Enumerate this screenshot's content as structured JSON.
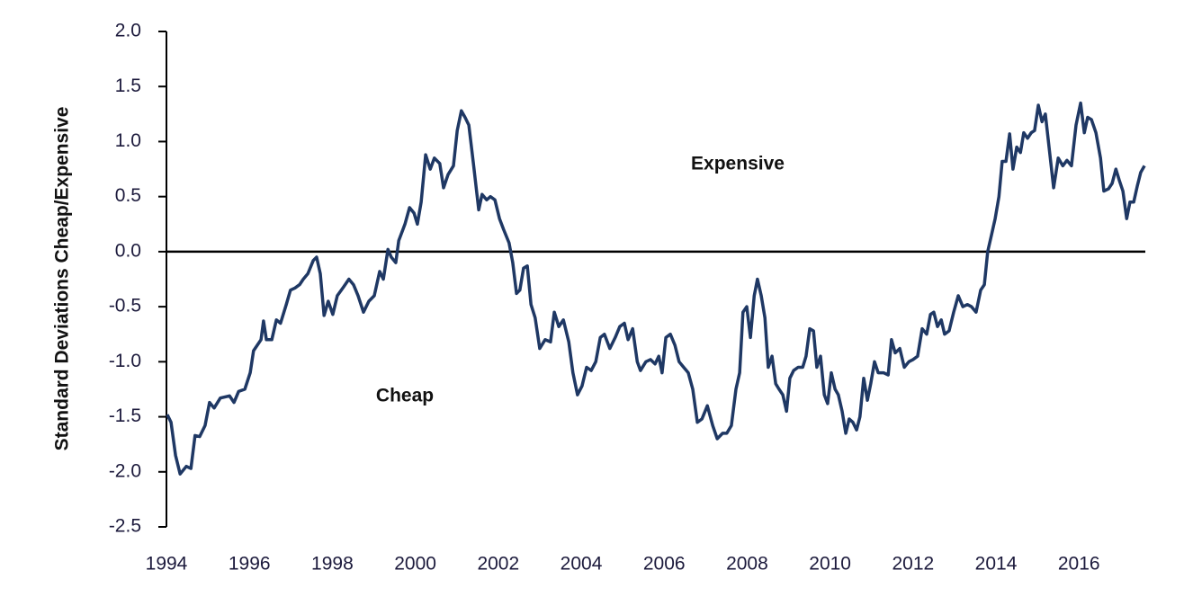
{
  "chart_data": {
    "type": "line",
    "y_label": "Standard Deviations Cheap/Expensive",
    "annotations": [
      "Expensive",
      "Cheap"
    ],
    "color": "#1f3864",
    "x": [
      1994.02,
      1994.11,
      1994.22,
      1994.33,
      1994.48,
      1994.59,
      1994.69,
      1994.8,
      1994.93,
      1995.04,
      1995.15,
      1995.3,
      1995.52,
      1995.63,
      1995.74,
      1995.89,
      1996.02,
      1996.1,
      1996.28,
      1996.34,
      1996.41,
      1996.54,
      1996.65,
      1996.75,
      1996.89,
      1996.99,
      1997.1,
      1997.21,
      1997.3,
      1997.41,
      1997.54,
      1997.62,
      1997.71,
      1997.8,
      1997.9,
      1998.01,
      1998.12,
      1998.27,
      1998.4,
      1998.51,
      1998.62,
      1998.75,
      1998.88,
      1999.01,
      1999.14,
      1999.23,
      1999.34,
      1999.42,
      1999.53,
      1999.6,
      1999.75,
      1999.86,
      1999.97,
      2000.05,
      2000.14,
      2000.25,
      2000.36,
      2000.46,
      2000.59,
      2000.68,
      2000.79,
      2000.92,
      2001.01,
      2001.11,
      2001.2,
      2001.29,
      2001.4,
      2001.53,
      2001.61,
      2001.72,
      2001.81,
      2001.92,
      2002.03,
      2002.13,
      2002.26,
      2002.35,
      2002.44,
      2002.52,
      2002.61,
      2002.7,
      2002.79,
      2002.89,
      2003.0,
      2003.13,
      2003.26,
      2003.35,
      2003.46,
      2003.57,
      2003.7,
      2003.8,
      2003.91,
      2004.02,
      2004.13,
      2004.24,
      2004.35,
      2004.46,
      2004.56,
      2004.69,
      2004.82,
      2004.93,
      2005.04,
      2005.13,
      2005.24,
      2005.35,
      2005.43,
      2005.56,
      2005.67,
      2005.78,
      2005.87,
      2005.95,
      2006.04,
      2006.15,
      2006.26,
      2006.36,
      2006.47,
      2006.58,
      2006.69,
      2006.8,
      2006.91,
      2007.04,
      2007.17,
      2007.28,
      2007.41,
      2007.51,
      2007.62,
      2007.73,
      2007.82,
      2007.9,
      2007.99,
      2008.08,
      2008.17,
      2008.25,
      2008.34,
      2008.43,
      2008.51,
      2008.6,
      2008.69,
      2008.77,
      2008.86,
      2008.95,
      2009.03,
      2009.12,
      2009.23,
      2009.34,
      2009.42,
      2009.51,
      2009.6,
      2009.68,
      2009.77,
      2009.86,
      2009.94,
      2010.03,
      2010.12,
      2010.2,
      2010.29,
      2010.38,
      2010.46,
      2010.55,
      2010.64,
      2010.72,
      2010.81,
      2010.9,
      2010.98,
      2011.07,
      2011.16,
      2011.29,
      2011.4,
      2011.48,
      2011.57,
      2011.68,
      2011.79,
      2011.9,
      2012.0,
      2012.11,
      2012.22,
      2012.33,
      2012.42,
      2012.5,
      2012.59,
      2012.68,
      2012.76,
      2012.87,
      2012.98,
      2013.09,
      2013.2,
      2013.31,
      2013.41,
      2013.52,
      2013.63,
      2013.72,
      2013.8,
      2013.89,
      2013.98,
      2014.07,
      2014.15,
      2014.24,
      2014.33,
      2014.41,
      2014.5,
      2014.59,
      2014.67,
      2014.76,
      2014.85,
      2014.93,
      2015.02,
      2015.11,
      2015.19,
      2015.28,
      2015.39,
      2015.5,
      2015.61,
      2015.71,
      2015.82,
      2015.93,
      2016.04,
      2016.13,
      2016.21,
      2016.3,
      2016.41,
      2016.52,
      2016.6,
      2016.71,
      2016.8,
      2016.89,
      2016.97,
      2017.06,
      2017.15,
      2017.23,
      2017.32,
      2017.41,
      2017.49,
      2017.58
    ],
    "values": [
      -1.48,
      -1.55,
      -1.85,
      -2.02,
      -1.95,
      -1.97,
      -1.67,
      -1.68,
      -1.58,
      -1.37,
      -1.42,
      -1.33,
      -1.31,
      -1.37,
      -1.27,
      -1.25,
      -1.1,
      -0.9,
      -0.8,
      -0.63,
      -0.8,
      -0.8,
      -0.62,
      -0.65,
      -0.48,
      -0.35,
      -0.33,
      -0.3,
      -0.25,
      -0.2,
      -0.08,
      -0.05,
      -0.2,
      -0.58,
      -0.45,
      -0.57,
      -0.4,
      -0.32,
      -0.25,
      -0.3,
      -0.4,
      -0.55,
      -0.45,
      -0.4,
      -0.18,
      -0.25,
      0.02,
      -0.05,
      -0.1,
      0.1,
      0.25,
      0.4,
      0.35,
      0.25,
      0.45,
      0.88,
      0.75,
      0.85,
      0.8,
      0.58,
      0.7,
      0.78,
      1.1,
      1.28,
      1.22,
      1.15,
      0.8,
      0.38,
      0.52,
      0.47,
      0.5,
      0.47,
      0.3,
      0.2,
      0.08,
      -0.1,
      -0.38,
      -0.35,
      -0.15,
      -0.13,
      -0.48,
      -0.6,
      -0.88,
      -0.8,
      -0.82,
      -0.55,
      -0.68,
      -0.62,
      -0.82,
      -1.1,
      -1.3,
      -1.22,
      -1.05,
      -1.08,
      -1.0,
      -0.78,
      -0.75,
      -0.88,
      -0.78,
      -0.68,
      -0.65,
      -0.8,
      -0.7,
      -1.0,
      -1.08,
      -1.0,
      -0.98,
      -1.02,
      -0.95,
      -1.1,
      -0.78,
      -0.75,
      -0.85,
      -1.0,
      -1.05,
      -1.1,
      -1.25,
      -1.55,
      -1.52,
      -1.4,
      -1.58,
      -1.7,
      -1.65,
      -1.65,
      -1.58,
      -1.25,
      -1.1,
      -0.55,
      -0.5,
      -0.78,
      -0.4,
      -0.25,
      -0.4,
      -0.6,
      -1.05,
      -0.95,
      -1.2,
      -1.25,
      -1.3,
      -1.45,
      -1.15,
      -1.08,
      -1.05,
      -1.05,
      -0.95,
      -0.7,
      -0.72,
      -1.05,
      -0.95,
      -1.3,
      -1.38,
      -1.1,
      -1.25,
      -1.3,
      -1.45,
      -1.65,
      -1.52,
      -1.55,
      -1.62,
      -1.5,
      -1.15,
      -1.35,
      -1.2,
      -1.0,
      -1.1,
      -1.1,
      -1.12,
      -0.8,
      -0.92,
      -0.88,
      -1.05,
      -1.0,
      -0.98,
      -0.95,
      -0.7,
      -0.75,
      -0.57,
      -0.55,
      -0.68,
      -0.62,
      -0.75,
      -0.72,
      -0.55,
      -0.4,
      -0.5,
      -0.48,
      -0.5,
      -0.55,
      -0.35,
      -0.3,
      0.0,
      0.15,
      0.3,
      0.5,
      0.82,
      0.82,
      1.07,
      0.75,
      0.95,
      0.9,
      1.08,
      1.03,
      1.08,
      1.1,
      1.33,
      1.18,
      1.25,
      0.95,
      0.58,
      0.85,
      0.78,
      0.83,
      0.78,
      1.15,
      1.35,
      1.08,
      1.22,
      1.2,
      1.08,
      0.85,
      0.55,
      0.57,
      0.62,
      0.75,
      0.65,
      0.55,
      0.3,
      0.45,
      0.45,
      0.6,
      0.72,
      0.78
    ],
    "xlim": [
      1994,
      2017.6
    ],
    "xticks": [
      1994,
      1996,
      1998,
      2000,
      2002,
      2004,
      2006,
      2008,
      2010,
      2012,
      2014,
      2016
    ],
    "ylim": [
      -2.5,
      2.0
    ],
    "yticks": [
      {
        "value": 2.0,
        "label": "2.0"
      },
      {
        "value": 1.5,
        "label": "1.5"
      },
      {
        "value": 1.0,
        "label": "1.0"
      },
      {
        "value": 0.5,
        "label": "0.5"
      },
      {
        "value": 0.0,
        "label": "0.0"
      },
      {
        "value": -0.5,
        "label": "-0.5"
      },
      {
        "value": -1.0,
        "label": "-1.0"
      },
      {
        "value": -1.5,
        "label": "-1.5"
      },
      {
        "value": -2.0,
        "label": "-2.0"
      },
      {
        "value": -2.5,
        "label": "-2.5"
      }
    ],
    "zero_line": true
  }
}
